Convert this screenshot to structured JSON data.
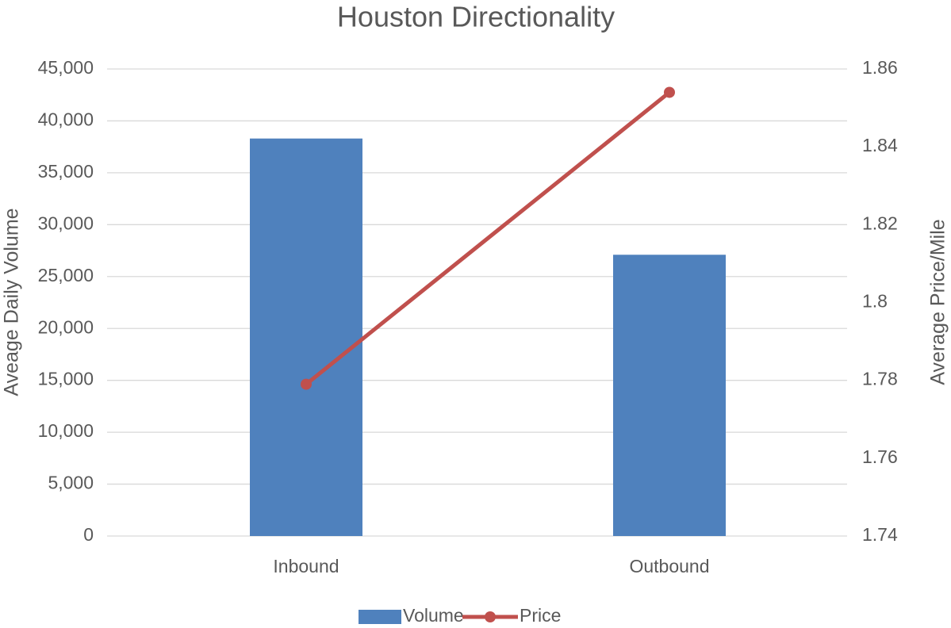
{
  "chart_data": {
    "type": "bar",
    "title": "Houston Directionality",
    "y_label": "Aveage Daily Volume",
    "y2_label": "Average Price/Mile",
    "categories": [
      "Inbound",
      "Outbound"
    ],
    "series": [
      {
        "name": "Volume",
        "type": "bar",
        "color": "#4f81bd",
        "values": [
          38300,
          27100
        ]
      },
      {
        "name": "Price",
        "type": "line",
        "color": "#c0504d",
        "axis": "y2",
        "values": [
          1.779,
          1.854
        ]
      }
    ],
    "ylim": [
      0,
      45000
    ],
    "yticks": [
      0,
      {
        "value": 5000,
        "label": "5,000"
      },
      {
        "value": 10000,
        "label": "10,000"
      },
      {
        "value": 15000,
        "label": "15,000"
      },
      {
        "value": 20000,
        "label": "20,000"
      },
      {
        "value": 25000,
        "label": "25,000"
      },
      {
        "value": 30000,
        "label": "30,000"
      },
      {
        "value": 35000,
        "label": "35,000"
      },
      {
        "value": 40000,
        "label": "40,000"
      },
      {
        "value": 45000,
        "label": "45,000"
      }
    ],
    "y2lim": [
      1.74,
      1.86
    ],
    "y2ticks": [
      1.74,
      1.76,
      1.78,
      1.8,
      1.82,
      1.84,
      1.86
    ],
    "grid": true,
    "legend": "bottom"
  }
}
